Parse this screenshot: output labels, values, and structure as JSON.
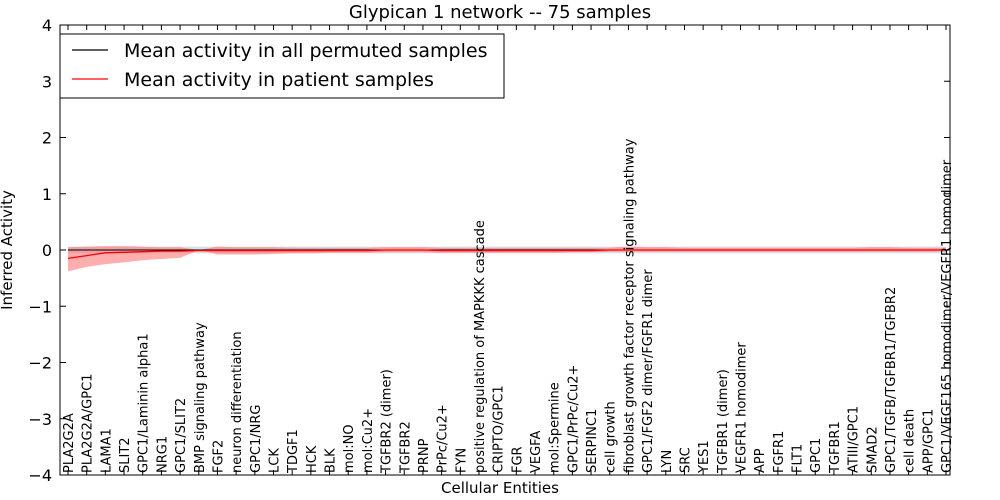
{
  "chart_data": {
    "type": "line",
    "title": "Glypican 1 network -- 75 samples",
    "xlabel": "Cellular Entities",
    "ylabel": "Inferred Activity",
    "ylim": [
      -4,
      4
    ],
    "yticks": [
      -4,
      -3,
      -2,
      -1,
      0,
      1,
      2,
      3,
      4
    ],
    "legend_position": "top-left",
    "categories": [
      "PLA2G2A",
      "PLA2G2A/GPC1",
      "LAMA1",
      "SLIT2",
      "GPC1/Laminin alpha1",
      "NRG1",
      "GPC1/SLIT2",
      "BMP signaling pathway",
      "FGF2",
      "neuron differentiation",
      "GPC1/NRG",
      "LCK",
      "TDGF1",
      "HCK",
      "BLK",
      "mol:NO",
      "mol:Cu2+",
      "TGFBR2 (dimer)",
      "TGFBR2",
      "PRNP",
      "PrPc/Cu2+",
      "FYN",
      "positive regulation of MAPKKK cascade",
      "CRIPTO/GPC1",
      "FGR",
      "VEGFA",
      "mol:Spermine",
      "GPC1/PrPc/Cu2+",
      "SERPINC1",
      "cell growth",
      "fibroblast growth factor receptor signaling pathway",
      "GPC1/FGF2 dimer/FGFR1 dimer",
      "LYN",
      "SRC",
      "YES1",
      "TGFBR1 (dimer)",
      "VEGFR1 homodimer",
      "APP",
      "FGFR1",
      "FLT1",
      "GPC1",
      "TGFBR1",
      "ATIII/GPC1",
      "SMAD2",
      "GPC1/TGFB/TGFBR1/TGFBR2",
      "cell death",
      "APP/GPC1",
      "GPC1/VEGF165 homodimer/VEGFR1 homodimer"
    ],
    "series": [
      {
        "name": "Mean activity in all permuted samples",
        "color": "#000000",
        "values": [
          0,
          0,
          0,
          0,
          0,
          0,
          0,
          0,
          0,
          0,
          0,
          0,
          0,
          0,
          0,
          0,
          0,
          0,
          0,
          0,
          0,
          0,
          0,
          0,
          0,
          0,
          0,
          0,
          0,
          0,
          0,
          0,
          0,
          0,
          0,
          0,
          0,
          0,
          0,
          0,
          0,
          0,
          0,
          0,
          0,
          0,
          0,
          0
        ],
        "band_lower": [
          -0.06,
          -0.06,
          -0.06,
          -0.06,
          -0.06,
          -0.06,
          -0.06,
          -0.06,
          -0.06,
          -0.06,
          -0.06,
          -0.06,
          -0.06,
          -0.06,
          -0.06,
          -0.06,
          -0.06,
          -0.06,
          -0.06,
          -0.06,
          -0.06,
          -0.06,
          -0.06,
          -0.06,
          -0.06,
          -0.06,
          -0.06,
          -0.06,
          -0.06,
          -0.06,
          -0.06,
          -0.06,
          -0.06,
          -0.06,
          -0.06,
          -0.06,
          -0.06,
          -0.06,
          -0.06,
          -0.06,
          -0.06,
          -0.06,
          -0.06,
          -0.06,
          -0.06,
          -0.06,
          -0.06,
          -0.06
        ],
        "band_upper": [
          0.06,
          0.06,
          0.06,
          0.06,
          0.06,
          0.06,
          0.06,
          0.06,
          0.06,
          0.06,
          0.06,
          0.06,
          0.06,
          0.06,
          0.06,
          0.06,
          0.06,
          0.06,
          0.06,
          0.06,
          0.06,
          0.06,
          0.06,
          0.06,
          0.06,
          0.06,
          0.06,
          0.06,
          0.06,
          0.06,
          0.06,
          0.06,
          0.06,
          0.06,
          0.06,
          0.06,
          0.06,
          0.06,
          0.06,
          0.06,
          0.06,
          0.06,
          0.06,
          0.06,
          0.06,
          0.06,
          0.06,
          0.06
        ]
      },
      {
        "name": "Mean activity in patient samples",
        "color": "#ff0000",
        "values": [
          -0.15,
          -0.1,
          -0.05,
          -0.04,
          -0.03,
          -0.02,
          -0.02,
          -0.01,
          -0.01,
          -0.01,
          -0.01,
          -0.01,
          -0.01,
          -0.01,
          -0.01,
          -0.01,
          -0.01,
          0,
          0,
          0,
          -0.01,
          -0.01,
          -0.01,
          -0.01,
          -0.01,
          -0.01,
          -0.01,
          -0.01,
          -0.01,
          0,
          0,
          0,
          0,
          0,
          0,
          0,
          0,
          0,
          0,
          0,
          0,
          0,
          0,
          0,
          0,
          0,
          0,
          0
        ],
        "band_lower": [
          -0.38,
          -0.3,
          -0.25,
          -0.22,
          -0.18,
          -0.16,
          -0.14,
          0,
          -0.08,
          -0.08,
          -0.08,
          -0.07,
          -0.06,
          -0.06,
          -0.05,
          -0.05,
          -0.05,
          -0.04,
          -0.04,
          -0.04,
          -0.05,
          -0.05,
          -0.05,
          -0.05,
          -0.05,
          -0.05,
          -0.05,
          -0.04,
          -0.04,
          -0.03,
          -0.03,
          -0.03,
          -0.03,
          -0.03,
          -0.03,
          -0.03,
          -0.03,
          -0.03,
          -0.03,
          -0.03,
          -0.03,
          -0.03,
          -0.03,
          -0.03,
          -0.03,
          -0.03,
          -0.03,
          -0.03
        ],
        "band_upper": [
          0.05,
          0.06,
          0.07,
          0.07,
          0.06,
          0.05,
          0.05,
          0,
          0.06,
          0.05,
          0.05,
          0.05,
          0.04,
          0.04,
          0.04,
          0.04,
          0.04,
          0.05,
          0.05,
          0.05,
          0.04,
          0.04,
          0.04,
          0.04,
          0.04,
          0.04,
          0.04,
          0.04,
          0.04,
          0.04,
          0.06,
          0.05,
          0.05,
          0.04,
          0.04,
          0.04,
          0.04,
          0.04,
          0.04,
          0.04,
          0.04,
          0.04,
          0.04,
          0.05,
          0.05,
          0.04,
          0.04,
          0.04
        ]
      }
    ]
  }
}
